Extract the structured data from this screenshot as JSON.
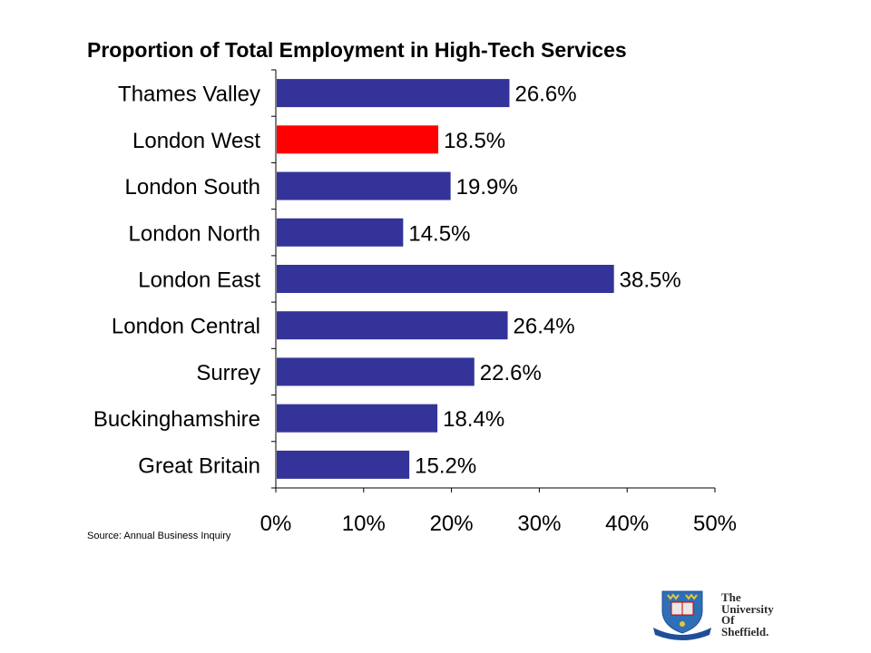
{
  "chart_data": {
    "type": "bar",
    "orientation": "horizontal",
    "title": "Proportion of Total Employment in High-Tech Services",
    "categories": [
      "Thames Valley",
      "London West",
      "London South",
      "London North",
      "London East",
      "London Central",
      "Surrey",
      "Buckinghamshire",
      "Great Britain"
    ],
    "values": [
      26.6,
      18.5,
      19.9,
      14.5,
      38.5,
      26.4,
      22.6,
      18.4,
      15.2
    ],
    "value_labels": [
      "26.6%",
      "18.5%",
      "19.9%",
      "14.5%",
      "38.5%",
      "26.4%",
      "22.6%",
      "18.4%",
      "15.2%"
    ],
    "bar_colors": [
      "#333399",
      "#ff0000",
      "#333399",
      "#333399",
      "#333399",
      "#333399",
      "#333399",
      "#333399",
      "#333399"
    ],
    "xlim": [
      0,
      50
    ],
    "xticks": [
      0,
      10,
      20,
      30,
      40,
      50
    ],
    "xtick_labels": [
      "0%",
      "10%",
      "20%",
      "30%",
      "40%",
      "50%"
    ],
    "grid": false,
    "legend": "none"
  },
  "source": "Source: Annual Business Inquiry",
  "logo": {
    "lines": [
      "The",
      "University",
      "Of",
      "Sheffield."
    ],
    "colors": {
      "shield_blue": "#2f6fb5",
      "shield_gold": "#e8c53a",
      "band_blue": "#1f4f9a"
    }
  }
}
